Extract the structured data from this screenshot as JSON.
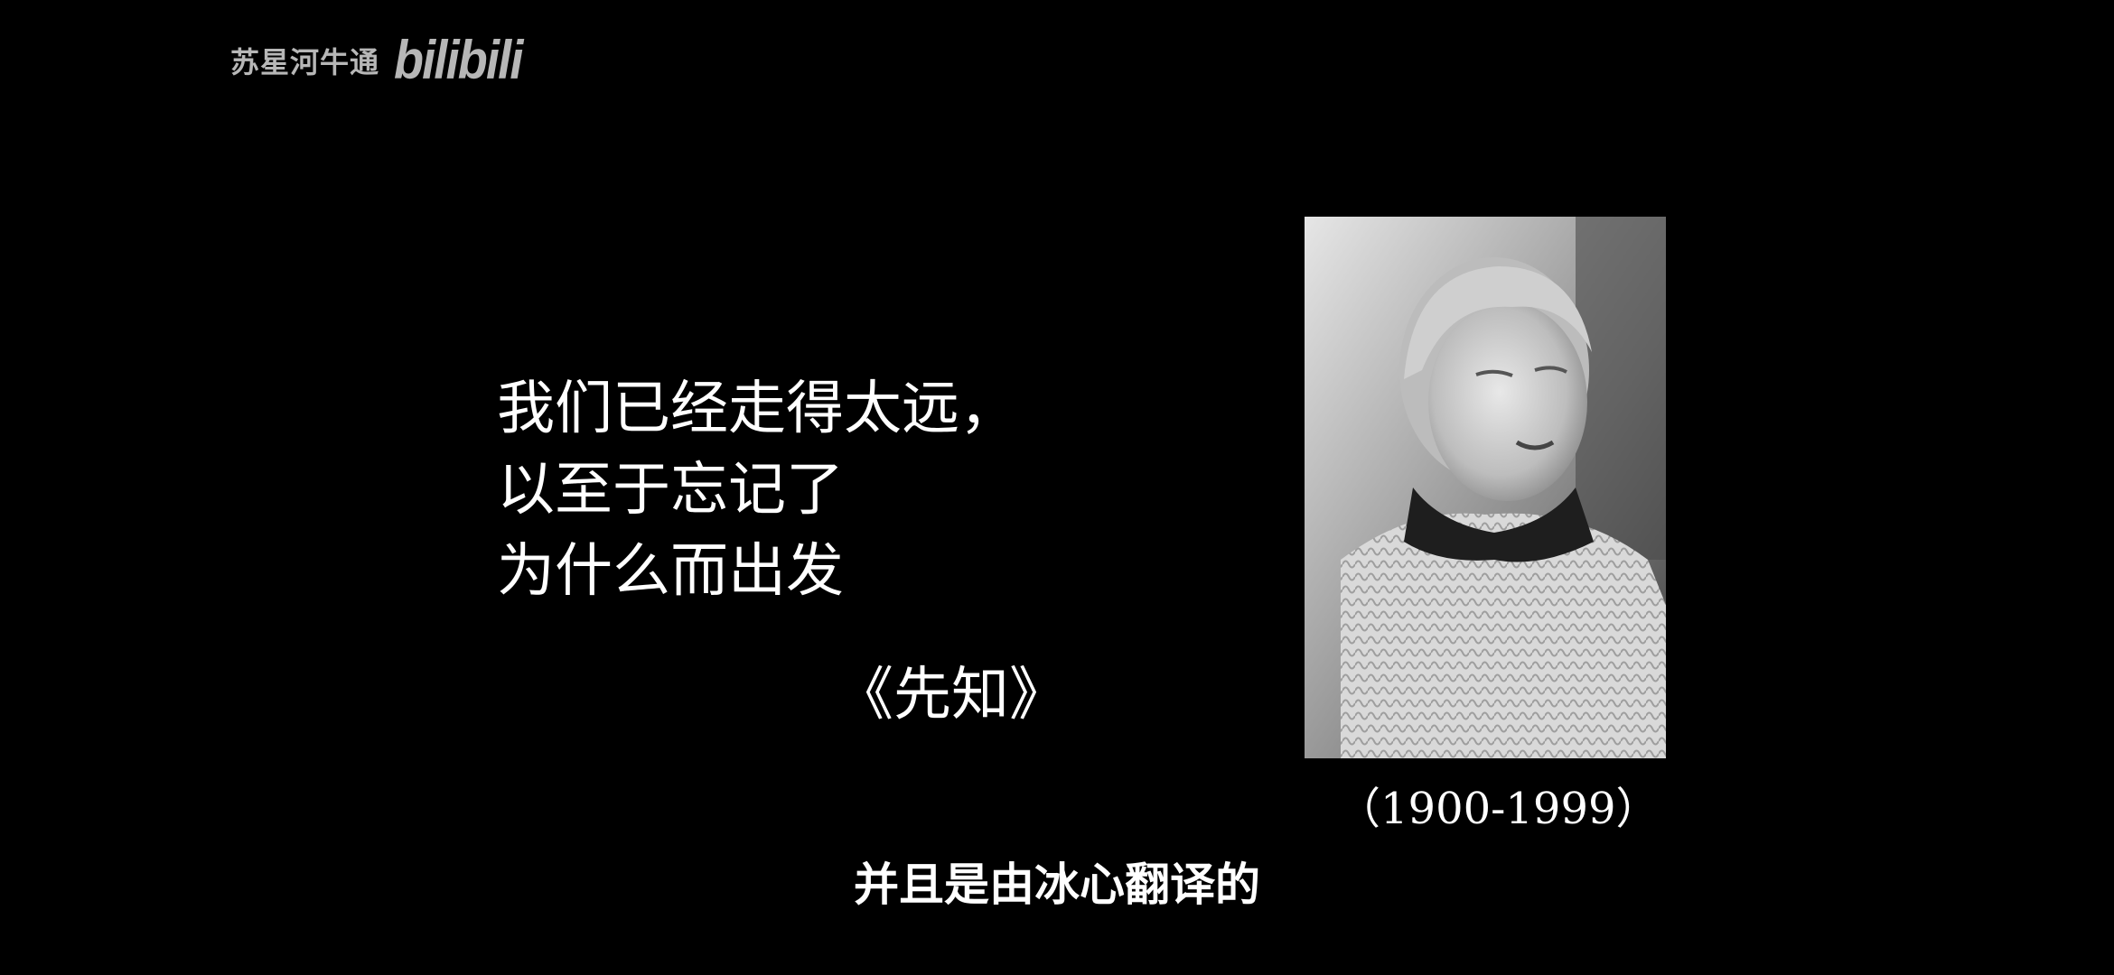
{
  "watermark": {
    "uploader": "苏星河牛通",
    "logo_text": "bilibili"
  },
  "quote": {
    "lines": [
      "我们已经走得太远，",
      "以至于忘记了",
      "为什么而出发"
    ]
  },
  "work_title": "《先知》",
  "portrait": {
    "lifespan": "（1900-1999）"
  },
  "subtitle": "并且是由冰心翻译的"
}
